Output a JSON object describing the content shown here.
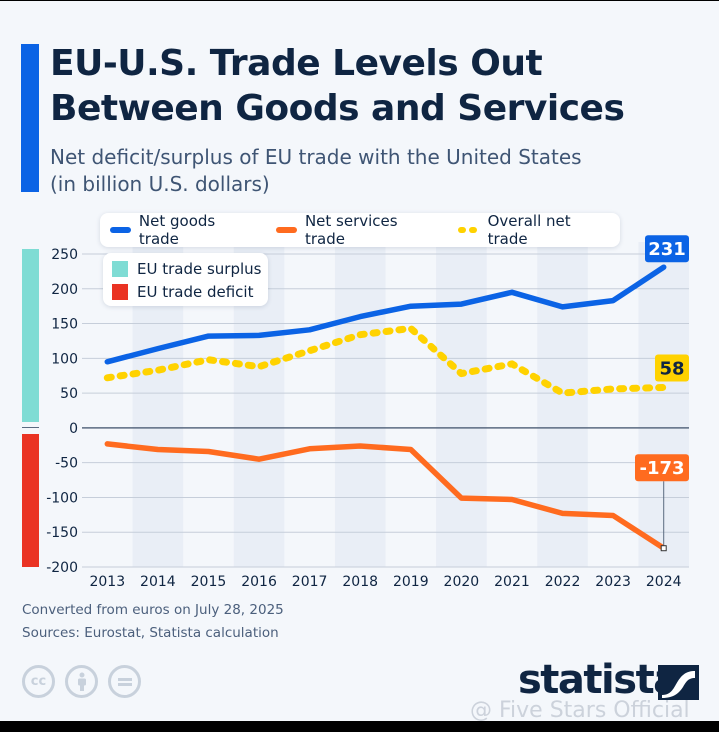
{
  "header": {
    "title_line1": "EU-U.S. Trade Levels Out",
    "title_line2": "Between Goods and Services",
    "subtitle_line1": "Net deficit/surplus of EU trade with the United States",
    "subtitle_line2": "(in billion U.S. dollars)"
  },
  "legend": {
    "series": [
      {
        "label": "Net goods trade",
        "color": "#0b63e5"
      },
      {
        "label": "Net services trade",
        "color": "#ff6b1f"
      },
      {
        "label": "Overall net trade",
        "color": "#ffd200"
      }
    ],
    "zones": [
      {
        "label": "EU trade surplus",
        "color": "#7fdcd4"
      },
      {
        "label": "EU trade deficit",
        "color": "#ea3323"
      }
    ]
  },
  "chart_data": {
    "type": "line",
    "title": "EU-U.S. Trade Levels Out Between Goods and Services",
    "subtitle": "Net deficit/surplus of EU trade with the United States (in billion U.S. dollars)",
    "xlabel": "",
    "ylabel": "",
    "x": [
      "2013",
      "2014",
      "2015",
      "2016",
      "2017",
      "2018",
      "2019",
      "2020",
      "2021",
      "2022",
      "2023",
      "2024"
    ],
    "yticks": [
      250,
      200,
      150,
      100,
      50,
      0,
      -50,
      -100,
      -150,
      -200
    ],
    "ylim": [
      -200,
      250
    ],
    "grid": true,
    "legend_position": "top",
    "series": [
      {
        "name": "Net goods trade",
        "color": "#0b63e5",
        "style": "solid",
        "values": [
          95,
          114,
          132,
          133,
          141,
          160,
          175,
          178,
          195,
          174,
          183,
          231
        ]
      },
      {
        "name": "Net services trade",
        "color": "#ff6b1f",
        "style": "solid",
        "values": [
          -23,
          -31,
          -34,
          -45,
          -30,
          -26,
          -31,
          -101,
          -103,
          -123,
          -126,
          -173
        ]
      },
      {
        "name": "Overall net trade",
        "color": "#ffd200",
        "style": "dotted",
        "values": [
          72,
          83,
          98,
          88,
          111,
          134,
          143,
          78,
          92,
          50,
          56,
          58
        ]
      }
    ],
    "annotations": [
      {
        "series": "Net goods trade",
        "x": "2024",
        "label": "231"
      },
      {
        "series": "Overall net trade",
        "x": "2024",
        "label": "58"
      },
      {
        "series": "Net services trade",
        "x": "2024",
        "label": "-173"
      }
    ]
  },
  "footer": {
    "note": "Converted from euros on July 28, 2025",
    "sources": "Sources: Eurostat, Statista calculation",
    "license_icons": [
      "cc-icon",
      "by-icon",
      "nd-icon"
    ],
    "logo": "statista",
    "watermark": "@ Five Stars Official"
  }
}
